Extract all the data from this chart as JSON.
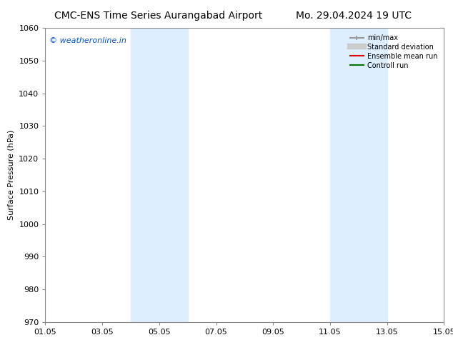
{
  "title_left": "CMC-ENS Time Series Aurangabad Airport",
  "title_right": "Mo. 29.04.2024 19 UTC",
  "ylabel": "Surface Pressure (hPa)",
  "ylim": [
    970,
    1060
  ],
  "yticks": [
    970,
    980,
    990,
    1000,
    1010,
    1020,
    1030,
    1040,
    1050,
    1060
  ],
  "xtick_labels": [
    "01.05",
    "03.05",
    "05.05",
    "07.05",
    "09.05",
    "11.05",
    "13.05",
    "15.05"
  ],
  "xtick_positions": [
    0,
    2,
    4,
    6,
    8,
    10,
    12,
    14
  ],
  "shaded_bands": [
    {
      "xmin": 3,
      "xmax": 4
    },
    {
      "xmin": 4,
      "xmax": 5
    },
    {
      "xmin": 10,
      "xmax": 11
    },
    {
      "xmin": 11,
      "xmax": 12
    }
  ],
  "shade_color": "#ddeeff",
  "watermark": "© weatheronline.in",
  "watermark_color": "#0055cc",
  "legend_items": [
    {
      "label": "min/max",
      "color": "#999999",
      "lw": 1.5
    },
    {
      "label": "Standard deviation",
      "color": "#cccccc",
      "lw": 6
    },
    {
      "label": "Ensemble mean run",
      "color": "#dd0000",
      "lw": 1.5
    },
    {
      "label": "Controll run",
      "color": "#007700",
      "lw": 1.5
    }
  ],
  "bg_color": "#ffffff",
  "title_fontsize": 10,
  "axis_fontsize": 8,
  "watermark_fontsize": 8
}
